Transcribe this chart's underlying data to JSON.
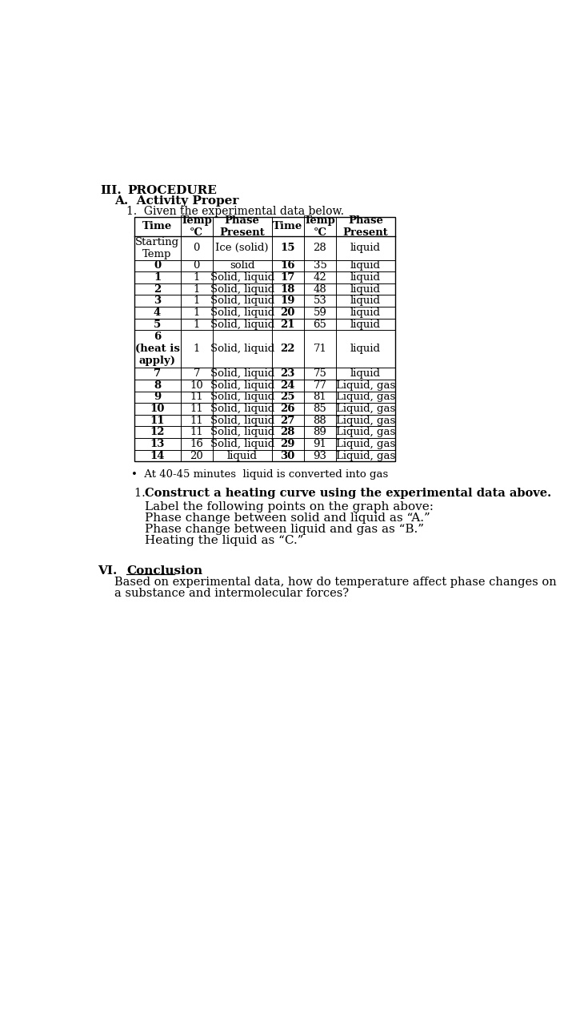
{
  "section_num": "III.",
  "section_title": "PROCEDURE",
  "subsection": "A.  Activity Proper",
  "item": "1.  Given the experimental data below.",
  "left_rows": [
    [
      "Starting\nTemp",
      "0",
      "Ice (solid)"
    ],
    [
      "0",
      "0",
      "solid"
    ],
    [
      "1",
      "1",
      "Solid, liquid"
    ],
    [
      "2",
      "1",
      "Solid, liquid"
    ],
    [
      "3",
      "1",
      "Solid, liquid"
    ],
    [
      "4",
      "1",
      "Solid, liquid"
    ],
    [
      "5",
      "1",
      "Solid, liquid"
    ],
    [
      "6\n(heat is\napply)",
      "1",
      "Solid, liquid"
    ],
    [
      "7",
      "7",
      "Solid, liquid"
    ],
    [
      "8",
      "10",
      "Solid, liquid"
    ],
    [
      "9",
      "11",
      "Solid, liquid"
    ],
    [
      "10",
      "11",
      "Solid, liquid"
    ],
    [
      "11",
      "11",
      "Solid, liquid"
    ],
    [
      "12",
      "11",
      "Solid, liquid"
    ],
    [
      "13",
      "16",
      "Solid, liquid"
    ],
    [
      "14",
      "20",
      "liquid"
    ]
  ],
  "right_rows": [
    [
      "15",
      "28",
      "liquid"
    ],
    [
      "16",
      "35",
      "liquid"
    ],
    [
      "17",
      "42",
      "liquid"
    ],
    [
      "18",
      "48",
      "liquid"
    ],
    [
      "19",
      "53",
      "liquid"
    ],
    [
      "20",
      "59",
      "liquid"
    ],
    [
      "21",
      "65",
      "liquid"
    ],
    [
      "22",
      "71",
      "liquid"
    ],
    [
      "23",
      "75",
      "liquid"
    ],
    [
      "24",
      "77",
      "Liquid, gas"
    ],
    [
      "25",
      "81",
      "Liquid, gas"
    ],
    [
      "26",
      "85",
      "Liquid, gas"
    ],
    [
      "27",
      "88",
      "Liquid, gas"
    ],
    [
      "28",
      "89",
      "Liquid, gas"
    ],
    [
      "29",
      "91",
      "Liquid, gas"
    ],
    [
      "30",
      "93",
      "Liquid, gas"
    ]
  ],
  "bullet_note": "At 40-45 minutes  liquid is converted into gas",
  "construct_label_bold": "Construct a heating curve using the experimental data above",
  "label_lines": [
    "Label the following points on the graph above:",
    "Phase change between solid and liquid as “A.”",
    "Phase change between liquid and gas as “B.”",
    "Heating the liquid as “C.”"
  ],
  "conclusion_num": "VI.",
  "conclusion_title": "Conclusion",
  "conclusion_lines": [
    "Based on experimental data, how do temperature affect phase changes on",
    "a substance and intermolecular forces?"
  ],
  "bg_color": "#ffffff",
  "text_color": "#000000"
}
